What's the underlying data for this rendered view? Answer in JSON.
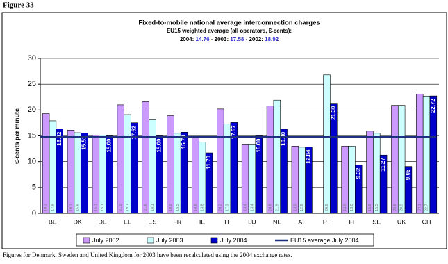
{
  "figure_label": "Figure 33",
  "chart_data": {
    "type": "bar",
    "title": "Fixed-to-mobile national average interconnection charges",
    "subtitle": "EU15  weighted average (all operators, €-cents):",
    "summary_parts": [
      "2004: ",
      "14.76",
      " - 2003: ",
      "17.58",
      " - 2002: ",
      "18.92"
    ],
    "y_label": "€-cents per minute",
    "categories": [
      "BE",
      "DK",
      "DE",
      "EL",
      "ES",
      "FR",
      "IE",
      "IT",
      "LU",
      "NL",
      "AT",
      "PT",
      "FI",
      "SE",
      "UK",
      "CH"
    ],
    "series": [
      {
        "name": "July 2002",
        "color": "#cc99ff",
        "values": [
          19.3,
          16.1,
          15.1,
          21.0,
          21.6,
          18.9,
          14.8,
          20.2,
          13.4,
          20.8,
          13.0,
          null,
          13.0,
          15.9,
          20.9,
          23.1
        ],
        "value_labels": [
          "19.3",
          "16.1",
          "15.1",
          "21.0",
          "21.6",
          "18.9",
          "14.8",
          "20.2",
          "13.4",
          "20.8",
          "13.0",
          null,
          "13.0",
          "15.9",
          "20.9",
          "23.1"
        ]
      },
      {
        "name": "July 2003",
        "color": "#ccffff",
        "values": [
          17.9,
          15.6,
          15.1,
          19.1,
          18.1,
          15.5,
          13.8,
          17.3,
          13.4,
          21.9,
          12.8,
          26.8,
          13.0,
          15.5,
          20.9,
          22.7
        ],
        "value_labels": [
          "17.9",
          "15.6",
          "15.1",
          "19.1",
          "18.1",
          "15.5",
          "13.8",
          "17.3",
          "13.4",
          "21.9",
          "12.8",
          "26.8",
          "13.0",
          "15.5",
          "20.9",
          "22.7"
        ]
      },
      {
        "name": "July 2004",
        "color": "#0000cc",
        "values": [
          16.32,
          15.51,
          15.0,
          17.52,
          15.0,
          15.7,
          11.7,
          17.57,
          15.0,
          16.3,
          12.84,
          21.3,
          9.32,
          11.27,
          9.06,
          22.72
        ],
        "value_labels": [
          "16.32",
          "15.51",
          "15.00",
          "17.52",
          "15.00",
          "15.70",
          "11.70",
          "17.57",
          "15.00",
          "16.30",
          "12.84",
          "21.30",
          "9.32",
          "11.27",
          "9.06",
          "22.72"
        ]
      }
    ],
    "reference_line": {
      "name": "EU15 average July 2004",
      "value": 14.76,
      "color": "#1f2f80"
    },
    "ylim": [
      0,
      30
    ],
    "yticks": [
      0,
      5,
      10,
      15,
      20,
      25,
      30
    ],
    "grid": true,
    "footnote": "Figures for Denmark, Sweden and United Kingdom for 2003 have been recalculated using the 2004 exchange rates."
  }
}
